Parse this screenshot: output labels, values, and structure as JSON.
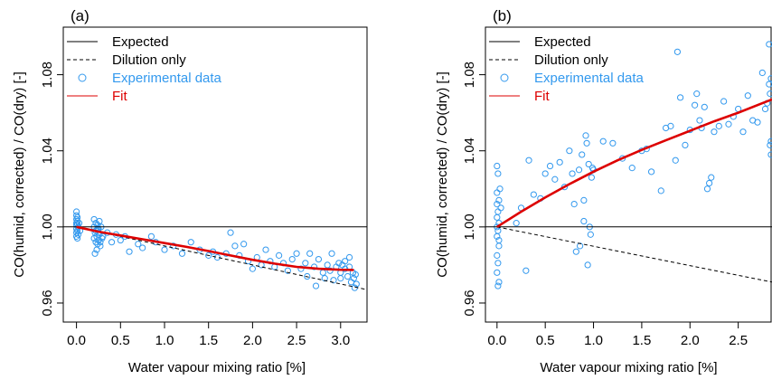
{
  "chart_data": [
    {
      "type": "scatter",
      "panel_label": "(a)",
      "xlabel": "Water vapour mixing ratio [%]",
      "ylabel": "CO(humid, corrected) / CO(dry) [-]",
      "xlim": [
        -0.15,
        3.3
      ],
      "ylim": [
        0.95,
        1.105
      ],
      "xticks": [
        0.0,
        0.5,
        1.0,
        1.5,
        2.0,
        2.5,
        3.0
      ],
      "xtick_labels": [
        "0.0",
        "0.5",
        "1.0",
        "1.5",
        "2.0",
        "2.5",
        "3.0"
      ],
      "yticks": [
        0.96,
        1.0,
        1.04,
        1.08
      ],
      "ytick_labels": [
        "0.96",
        "1.00",
        "1.04",
        "1.08"
      ],
      "legend_position": "top-left",
      "legend": [
        {
          "label": "Expected",
          "style": "solid-line",
          "color": "#000000"
        },
        {
          "label": "Dilution only",
          "style": "dashed-line",
          "color": "#000000"
        },
        {
          "label": "Experimental data",
          "style": "open-circle",
          "color": "#3399ee"
        },
        {
          "label": "Fit",
          "style": "solid-line",
          "color": "#dd0000"
        }
      ],
      "series": [
        {
          "name": "Expected",
          "kind": "line",
          "x": [
            -0.15,
            3.3
          ],
          "y": [
            1.0,
            1.0
          ]
        },
        {
          "name": "Dilution only",
          "kind": "line",
          "x": [
            0.0,
            3.3
          ],
          "y": [
            1.0,
            0.967
          ]
        },
        {
          "name": "Fit",
          "kind": "line",
          "x": [
            0.0,
            0.25,
            0.5,
            0.75,
            1.0,
            1.25,
            1.5,
            1.75,
            2.0,
            2.25,
            2.5,
            2.75,
            3.0,
            3.15
          ],
          "y": [
            1.0,
            0.9975,
            0.9955,
            0.9935,
            0.9915,
            0.9895,
            0.9873,
            0.985,
            0.9827,
            0.9807,
            0.979,
            0.978,
            0.9775,
            0.9774
          ]
        },
        {
          "name": "Experimental data",
          "kind": "points",
          "points": [
            [
              0.0,
              1.008
            ],
            [
              0.0,
              1.006
            ],
            [
              0.01,
              1.005
            ],
            [
              0.0,
              1.004
            ],
            [
              0.01,
              1.003
            ],
            [
              0.0,
              1.002
            ],
            [
              0.01,
              1.0015
            ],
            [
              0.0,
              1.001
            ],
            [
              0.02,
              1.0
            ],
            [
              0.0,
              0.999
            ],
            [
              0.01,
              0.998
            ],
            [
              0.0,
              0.997
            ],
            [
              0.02,
              0.996
            ],
            [
              0.0,
              0.995
            ],
            [
              0.01,
              0.994
            ],
            [
              0.03,
              1.002
            ],
            [
              0.04,
              0.998
            ],
            [
              0.2,
              1.004
            ],
            [
              0.22,
              1.002
            ],
            [
              0.24,
              1.001
            ],
            [
              0.2,
              1.0
            ],
            [
              0.25,
              0.999
            ],
            [
              0.22,
              0.998
            ],
            [
              0.21,
              0.997
            ],
            [
              0.26,
              0.996
            ],
            [
              0.23,
              0.995
            ],
            [
              0.2,
              0.994
            ],
            [
              0.25,
              0.993
            ],
            [
              0.22,
              0.992
            ],
            [
              0.24,
              0.991
            ],
            [
              0.27,
              0.99
            ],
            [
              0.23,
              0.988
            ],
            [
              0.21,
              0.986
            ],
            [
              0.26,
              1.003
            ],
            [
              0.28,
              1.0
            ],
            [
              0.25,
              0.997
            ],
            [
              0.29,
              0.994
            ],
            [
              0.24,
              0.999
            ],
            [
              0.27,
              0.992
            ],
            [
              0.3,
              0.995
            ],
            [
              0.35,
              0.997
            ],
            [
              0.4,
              0.992
            ],
            [
              0.45,
              0.996
            ],
            [
              0.5,
              0.993
            ],
            [
              0.55,
              0.995
            ],
            [
              0.6,
              0.987
            ],
            [
              0.7,
              0.991
            ],
            [
              0.75,
              0.989
            ],
            [
              0.85,
              0.995
            ],
            [
              0.9,
              0.992
            ],
            [
              1.0,
              0.988
            ],
            [
              1.1,
              0.99
            ],
            [
              1.2,
              0.986
            ],
            [
              1.3,
              0.992
            ],
            [
              1.4,
              0.988
            ],
            [
              1.5,
              0.985
            ],
            [
              1.55,
              0.987
            ],
            [
              1.6,
              0.984
            ],
            [
              1.7,
              0.986
            ],
            [
              1.75,
              0.997
            ],
            [
              1.8,
              0.99
            ],
            [
              1.85,
              0.985
            ],
            [
              1.9,
              0.991
            ],
            [
              1.95,
              0.982
            ],
            [
              2.0,
              0.978
            ],
            [
              2.05,
              0.984
            ],
            [
              2.1,
              0.98
            ],
            [
              2.15,
              0.988
            ],
            [
              2.2,
              0.982
            ],
            [
              2.25,
              0.979
            ],
            [
              2.3,
              0.985
            ],
            [
              2.35,
              0.981
            ],
            [
              2.4,
              0.977
            ],
            [
              2.45,
              0.983
            ],
            [
              2.5,
              0.986
            ],
            [
              2.55,
              0.978
            ],
            [
              2.6,
              0.981
            ],
            [
              2.62,
              0.974
            ],
            [
              2.65,
              0.986
            ],
            [
              2.7,
              0.979
            ],
            [
              2.72,
              0.969
            ],
            [
              2.75,
              0.983
            ],
            [
              2.8,
              0.976
            ],
            [
              2.82,
              0.973
            ],
            [
              2.85,
              0.98
            ],
            [
              2.88,
              0.977
            ],
            [
              2.9,
              0.986
            ],
            [
              2.92,
              0.972
            ],
            [
              2.95,
              0.979
            ],
            [
              2.98,
              0.981
            ],
            [
              3.0,
              0.976
            ],
            [
              3.02,
              0.98
            ],
            [
              3.05,
              0.978
            ],
            [
              3.08,
              0.974
            ],
            [
              3.1,
              0.979
            ],
            [
              3.12,
              0.971
            ],
            [
              3.14,
              0.976
            ],
            [
              3.15,
              0.973
            ],
            [
              3.16,
              0.968
            ],
            [
              3.17,
              0.975
            ],
            [
              3.18,
              0.97
            ],
            [
              3.1,
              0.984
            ],
            [
              3.05,
              0.982
            ],
            [
              3.0,
              0.973
            ]
          ]
        }
      ]
    },
    {
      "type": "scatter",
      "panel_label": "(b)",
      "xlabel": "Water vapour mixing ratio [%]",
      "ylabel": "CO(humid, corrected) / CO(dry) [-]",
      "xlim": [
        -0.12,
        2.85
      ],
      "ylim": [
        0.95,
        1.105
      ],
      "xticks": [
        0.0,
        0.5,
        1.0,
        1.5,
        2.0,
        2.5
      ],
      "xtick_labels": [
        "0.0",
        "0.5",
        "1.0",
        "1.5",
        "2.0",
        "2.5"
      ],
      "yticks": [
        0.96,
        1.0,
        1.04,
        1.08
      ],
      "ytick_labels": [
        "0.96",
        "1.00",
        "1.04",
        "1.08"
      ],
      "legend_position": "top-left",
      "legend": [
        {
          "label": "Expected",
          "style": "solid-line",
          "color": "#000000"
        },
        {
          "label": "Dilution only",
          "style": "dashed-line",
          "color": "#000000"
        },
        {
          "label": "Experimental data",
          "style": "open-circle",
          "color": "#3399ee"
        },
        {
          "label": "Fit",
          "style": "solid-line",
          "color": "#dd0000"
        }
      ],
      "series": [
        {
          "name": "Expected",
          "kind": "line",
          "x": [
            -0.12,
            2.85
          ],
          "y": [
            1.0,
            1.0
          ]
        },
        {
          "name": "Dilution only",
          "kind": "line",
          "x": [
            0.0,
            2.85
          ],
          "y": [
            1.0,
            0.971
          ]
        },
        {
          "name": "Fit",
          "kind": "line",
          "x": [
            0.0,
            0.25,
            0.5,
            0.75,
            1.0,
            1.25,
            1.5,
            1.75,
            2.0,
            2.25,
            2.5,
            2.75,
            2.85
          ],
          "y": [
            1.0,
            1.008,
            1.0155,
            1.0225,
            1.029,
            1.035,
            1.0405,
            1.0455,
            1.0505,
            1.0555,
            1.06,
            1.065,
            1.067
          ]
        },
        {
          "name": "Experimental data",
          "kind": "points",
          "points": [
            [
              0.0,
              1.032
            ],
            [
              0.01,
              1.028
            ],
            [
              0.0,
              1.018
            ],
            [
              0.02,
              1.014
            ],
            [
              0.0,
              1.012
            ],
            [
              0.01,
              1.008
            ],
            [
              0.0,
              1.005
            ],
            [
              0.02,
              1.002
            ],
            [
              0.0,
              1.0
            ],
            [
              0.01,
              0.998
            ],
            [
              0.0,
              0.995
            ],
            [
              0.02,
              0.99
            ],
            [
              0.0,
              0.985
            ],
            [
              0.01,
              0.981
            ],
            [
              0.0,
              0.976
            ],
            [
              0.02,
              0.971
            ],
            [
              0.01,
              0.969
            ],
            [
              0.03,
              1.02
            ],
            [
              0.04,
              1.01
            ],
            [
              0.02,
              0.993
            ],
            [
              0.2,
              1.002
            ],
            [
              0.25,
              1.01
            ],
            [
              0.3,
              0.977
            ],
            [
              0.33,
              1.035
            ],
            [
              0.38,
              1.017
            ],
            [
              0.45,
              1.015
            ],
            [
              0.5,
              1.028
            ],
            [
              0.55,
              1.032
            ],
            [
              0.6,
              1.025
            ],
            [
              0.65,
              1.034
            ],
            [
              0.7,
              1.021
            ],
            [
              0.75,
              1.04
            ],
            [
              0.78,
              1.028
            ],
            [
              0.8,
              1.012
            ],
            [
              0.82,
              0.987
            ],
            [
              0.85,
              1.03
            ],
            [
              0.86,
              0.99
            ],
            [
              0.88,
              1.038
            ],
            [
              0.9,
              1.014
            ],
            [
              0.9,
              1.003
            ],
            [
              0.92,
              1.048
            ],
            [
              0.93,
              1.044
            ],
            [
              0.94,
              0.98
            ],
            [
              0.95,
              1.033
            ],
            [
              0.96,
              1.0
            ],
            [
              0.97,
              0.996
            ],
            [
              0.98,
              1.026
            ],
            [
              0.99,
              1.031
            ],
            [
              1.0,
              1.03
            ],
            [
              1.1,
              1.045
            ],
            [
              1.2,
              1.044
            ],
            [
              1.3,
              1.036
            ],
            [
              1.4,
              1.031
            ],
            [
              1.5,
              1.04
            ],
            [
              1.55,
              1.041
            ],
            [
              1.6,
              1.029
            ],
            [
              1.7,
              1.019
            ],
            [
              1.75,
              1.052
            ],
            [
              1.8,
              1.053
            ],
            [
              1.85,
              1.035
            ],
            [
              1.87,
              1.092
            ],
            [
              1.9,
              1.068
            ],
            [
              1.95,
              1.043
            ],
            [
              2.0,
              1.051
            ],
            [
              2.05,
              1.064
            ],
            [
              2.07,
              1.07
            ],
            [
              2.1,
              1.056
            ],
            [
              2.12,
              1.052
            ],
            [
              2.15,
              1.063
            ],
            [
              2.18,
              1.02
            ],
            [
              2.2,
              1.023
            ],
            [
              2.22,
              1.026
            ],
            [
              2.25,
              1.05
            ],
            [
              2.3,
              1.053
            ],
            [
              2.35,
              1.066
            ],
            [
              2.4,
              1.054
            ],
            [
              2.45,
              1.058
            ],
            [
              2.5,
              1.062
            ],
            [
              2.55,
              1.05
            ],
            [
              2.6,
              1.069
            ],
            [
              2.65,
              1.056
            ],
            [
              2.7,
              1.055
            ],
            [
              2.75,
              1.081
            ],
            [
              2.78,
              1.062
            ],
            [
              2.8,
              1.065
            ],
            [
              2.82,
              1.075
            ],
            [
              2.83,
              1.07
            ],
            [
              2.84,
              1.045
            ],
            [
              2.83,
              1.043
            ],
            [
              2.84,
              1.038
            ],
            [
              2.82,
              1.096
            ],
            [
              2.84,
              1.078
            ]
          ]
        }
      ]
    }
  ]
}
